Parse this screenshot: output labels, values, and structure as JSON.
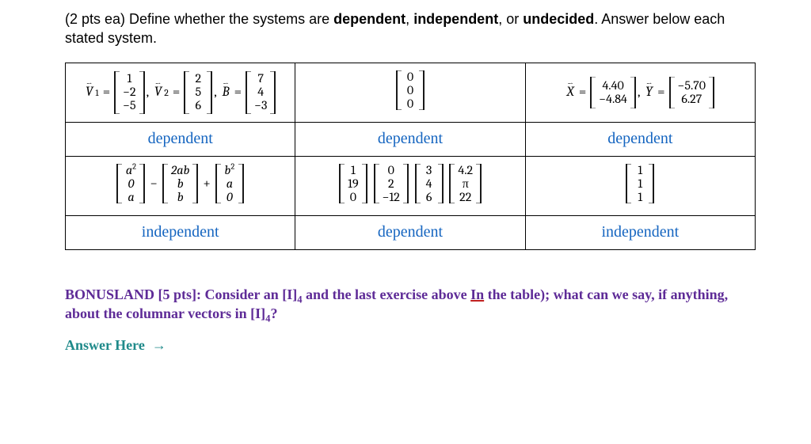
{
  "instruction_pre": "(2 pts ea) Define whether the systems are ",
  "instruction_kw1": "dependent",
  "instruction_mid1": ", ",
  "instruction_kw2": "independent",
  "instruction_mid2": ", or ",
  "instruction_kw3": "undecided",
  "instruction_post": ".  Answer below each stated system.",
  "table": {
    "border_color": "#000000",
    "answer_color": "#1565c0",
    "cells": [
      [
        {
          "type": "vectors_eq",
          "items": [
            {
              "label": "V",
              "sub": "1",
              "arrow": true,
              "col": [
                "1",
                "−2",
                "−5"
              ]
            },
            {
              "label": "V",
              "sub": "2",
              "arrow": true,
              "col": [
                "2",
                "5",
                "6"
              ]
            },
            {
              "label": "B",
              "sub": "",
              "arrow": true,
              "col": [
                "7",
                "4",
                "−3"
              ]
            }
          ],
          "sep": ","
        },
        {
          "type": "single_col",
          "col": [
            "0",
            "0",
            "0"
          ]
        },
        {
          "type": "vectors_eq",
          "items": [
            {
              "label": "X",
              "arrow": true,
              "col": [
                "4.40",
                "−4.84"
              ]
            },
            {
              "label": "Y",
              "arrow": true,
              "col": [
                "−5.70",
                "6.27"
              ]
            }
          ],
          "sep": ","
        }
      ],
      [
        "dependent",
        "dependent",
        "dependent"
      ],
      [
        {
          "type": "expr3",
          "a": [
            "a²",
            "0",
            "a"
          ],
          "op1": "−",
          "b": [
            "2ab",
            "b",
            "b"
          ],
          "op2": "+",
          "c": [
            "b²",
            "a",
            "0"
          ],
          "italic": true
        },
        {
          "type": "four_cols",
          "cols": [
            [
              "1",
              "19",
              "0"
            ],
            [
              "0",
              "2",
              "−12"
            ],
            [
              "3",
              "4",
              "6"
            ],
            [
              "4.2",
              "π",
              "22"
            ]
          ]
        },
        {
          "type": "single_col",
          "col": [
            "1",
            "1",
            "1"
          ]
        }
      ],
      [
        "independent",
        "dependent",
        "independent"
      ]
    ]
  },
  "bonus_pre": "BONUSLAND [5 pts]: Consider an [I]",
  "bonus_sub1": "4",
  "bonus_mid1": " and the last exercise above ",
  "bonus_In": "In",
  "bonus_mid2": " the table); what can we say, if anything, about the columnar vectors in [I]",
  "bonus_sub2": "4",
  "bonus_end": "?",
  "bonus_color": "#5e2b97",
  "answer_here": "Answer Here",
  "answer_arrow": "→",
  "answer_color": "#1f8a8a"
}
